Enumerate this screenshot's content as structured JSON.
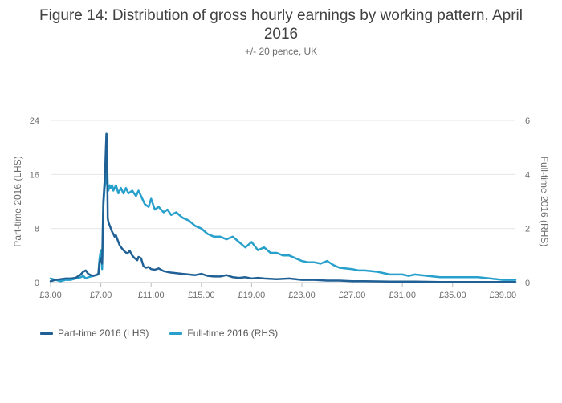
{
  "chart_data": {
    "type": "line",
    "title": "Figure 14: Distribution of gross hourly earnings by working pattern, April 2016",
    "subtitle": "+/- 20 pence, UK",
    "x_tick_labels": [
      "£3.00",
      "£7.00",
      "£11.00",
      "£15.00",
      "£19.00",
      "£23.00",
      "£27.00",
      "£31.00",
      "£35.00",
      "£39.00"
    ],
    "x_ticks": [
      3,
      7,
      11,
      15,
      19,
      23,
      27,
      31,
      35,
      39
    ],
    "xlim": [
      3,
      40
    ],
    "ylabel_left": "Part-time 2016 (LHS)",
    "ylabel_right": "Full-time 2016 (RHS)",
    "ylim_left": [
      0,
      24
    ],
    "ylim_right": [
      0,
      6
    ],
    "y_ticks_left": [
      0,
      8,
      16,
      24
    ],
    "y_ticks_right": [
      0,
      2,
      4,
      6
    ],
    "grid": true,
    "legend_position": "bottom-left",
    "series": [
      {
        "name": "Part-time 2016 (LHS)",
        "axis": "left",
        "color": "#206095",
        "points": [
          [
            3.0,
            0.2
          ],
          [
            3.4,
            0.4
          ],
          [
            3.8,
            0.5
          ],
          [
            4.2,
            0.6
          ],
          [
            4.6,
            0.6
          ],
          [
            5.0,
            0.7
          ],
          [
            5.4,
            1.2
          ],
          [
            5.6,
            1.6
          ],
          [
            5.8,
            1.8
          ],
          [
            6.0,
            1.3
          ],
          [
            6.2,
            1.1
          ],
          [
            6.4,
            1.0
          ],
          [
            6.6,
            1.1
          ],
          [
            6.8,
            1.3
          ],
          [
            6.9,
            3.0
          ],
          [
            7.0,
            3.6
          ],
          [
            7.1,
            2.8
          ],
          [
            7.2,
            12.0
          ],
          [
            7.3,
            15.0
          ],
          [
            7.35,
            17.0
          ],
          [
            7.4,
            20.0
          ],
          [
            7.45,
            22.0
          ],
          [
            7.5,
            18.0
          ],
          [
            7.55,
            9.5
          ],
          [
            7.6,
            9.0
          ],
          [
            7.7,
            8.5
          ],
          [
            7.8,
            8.0
          ],
          [
            7.9,
            7.5
          ],
          [
            8.0,
            7.2
          ],
          [
            8.1,
            6.8
          ],
          [
            8.2,
            7.0
          ],
          [
            8.3,
            6.5
          ],
          [
            8.5,
            5.5
          ],
          [
            8.7,
            5.0
          ],
          [
            8.9,
            4.6
          ],
          [
            9.1,
            4.3
          ],
          [
            9.3,
            4.7
          ],
          [
            9.5,
            4.0
          ],
          [
            9.7,
            3.6
          ],
          [
            9.9,
            3.3
          ],
          [
            10.0,
            3.8
          ],
          [
            10.2,
            3.6
          ],
          [
            10.4,
            2.4
          ],
          [
            10.6,
            2.2
          ],
          [
            10.8,
            2.3
          ],
          [
            11.0,
            2.0
          ],
          [
            11.3,
            1.9
          ],
          [
            11.6,
            2.1
          ],
          [
            12.0,
            1.7
          ],
          [
            12.5,
            1.5
          ],
          [
            13.0,
            1.4
          ],
          [
            13.5,
            1.3
          ],
          [
            14.0,
            1.2
          ],
          [
            14.5,
            1.1
          ],
          [
            15.0,
            1.3
          ],
          [
            15.5,
            1.0
          ],
          [
            16.0,
            0.9
          ],
          [
            16.5,
            0.9
          ],
          [
            17.0,
            1.1
          ],
          [
            17.5,
            0.8
          ],
          [
            18.0,
            0.7
          ],
          [
            18.5,
            0.8
          ],
          [
            19.0,
            0.6
          ],
          [
            19.5,
            0.7
          ],
          [
            20.0,
            0.6
          ],
          [
            21.0,
            0.5
          ],
          [
            22.0,
            0.6
          ],
          [
            23.0,
            0.4
          ],
          [
            24.0,
            0.4
          ],
          [
            25.0,
            0.3
          ],
          [
            26.0,
            0.3
          ],
          [
            27.0,
            0.2
          ],
          [
            28.0,
            0.2
          ],
          [
            30.0,
            0.15
          ],
          [
            32.0,
            0.15
          ],
          [
            34.0,
            0.1
          ],
          [
            36.0,
            0.1
          ],
          [
            38.0,
            0.1
          ],
          [
            40.0,
            0.1
          ]
        ]
      },
      {
        "name": "Full-time 2016 (RHS)",
        "axis": "right",
        "color": "#27a0cc",
        "points": [
          [
            3.0,
            0.15
          ],
          [
            3.4,
            0.1
          ],
          [
            3.8,
            0.05
          ],
          [
            4.2,
            0.1
          ],
          [
            4.6,
            0.1
          ],
          [
            5.0,
            0.15
          ],
          [
            5.4,
            0.2
          ],
          [
            5.6,
            0.25
          ],
          [
            5.8,
            0.15
          ],
          [
            6.0,
            0.2
          ],
          [
            6.4,
            0.25
          ],
          [
            6.8,
            0.3
          ],
          [
            6.9,
            0.9
          ],
          [
            7.0,
            1.2
          ],
          [
            7.1,
            0.5
          ],
          [
            7.2,
            2.8
          ],
          [
            7.3,
            3.5
          ],
          [
            7.4,
            3.8
          ],
          [
            7.45,
            5.5
          ],
          [
            7.5,
            4.5
          ],
          [
            7.55,
            3.6
          ],
          [
            7.6,
            3.4
          ],
          [
            7.7,
            3.6
          ],
          [
            7.8,
            3.5
          ],
          [
            7.9,
            3.6
          ],
          [
            8.0,
            3.4
          ],
          [
            8.2,
            3.6
          ],
          [
            8.4,
            3.3
          ],
          [
            8.6,
            3.5
          ],
          [
            8.8,
            3.3
          ],
          [
            9.0,
            3.5
          ],
          [
            9.2,
            3.3
          ],
          [
            9.5,
            3.4
          ],
          [
            9.8,
            3.2
          ],
          [
            10.0,
            3.4
          ],
          [
            10.2,
            3.2
          ],
          [
            10.5,
            2.9
          ],
          [
            10.8,
            2.8
          ],
          [
            11.0,
            3.1
          ],
          [
            11.3,
            2.7
          ],
          [
            11.6,
            2.8
          ],
          [
            12.0,
            2.6
          ],
          [
            12.3,
            2.7
          ],
          [
            12.6,
            2.5
          ],
          [
            13.0,
            2.6
          ],
          [
            13.5,
            2.4
          ],
          [
            14.0,
            2.3
          ],
          [
            14.5,
            2.1
          ],
          [
            15.0,
            2.0
          ],
          [
            15.5,
            1.8
          ],
          [
            16.0,
            1.7
          ],
          [
            16.5,
            1.7
          ],
          [
            17.0,
            1.6
          ],
          [
            17.5,
            1.7
          ],
          [
            18.0,
            1.5
          ],
          [
            18.5,
            1.3
          ],
          [
            19.0,
            1.5
          ],
          [
            19.5,
            1.2
          ],
          [
            20.0,
            1.3
          ],
          [
            20.5,
            1.1
          ],
          [
            21.0,
            1.1
          ],
          [
            21.5,
            1.0
          ],
          [
            22.0,
            1.0
          ],
          [
            22.5,
            0.9
          ],
          [
            23.0,
            0.8
          ],
          [
            23.5,
            0.75
          ],
          [
            24.0,
            0.75
          ],
          [
            24.5,
            0.7
          ],
          [
            25.0,
            0.8
          ],
          [
            25.5,
            0.65
          ],
          [
            26.0,
            0.55
          ],
          [
            27.0,
            0.5
          ],
          [
            27.5,
            0.45
          ],
          [
            28.0,
            0.45
          ],
          [
            29.0,
            0.4
          ],
          [
            30.0,
            0.3
          ],
          [
            31.0,
            0.3
          ],
          [
            31.5,
            0.25
          ],
          [
            32.0,
            0.3
          ],
          [
            33.0,
            0.25
          ],
          [
            34.0,
            0.2
          ],
          [
            35.0,
            0.2
          ],
          [
            36.0,
            0.2
          ],
          [
            37.0,
            0.2
          ],
          [
            38.0,
            0.15
          ],
          [
            39.0,
            0.1
          ],
          [
            40.0,
            0.1
          ]
        ]
      }
    ]
  }
}
